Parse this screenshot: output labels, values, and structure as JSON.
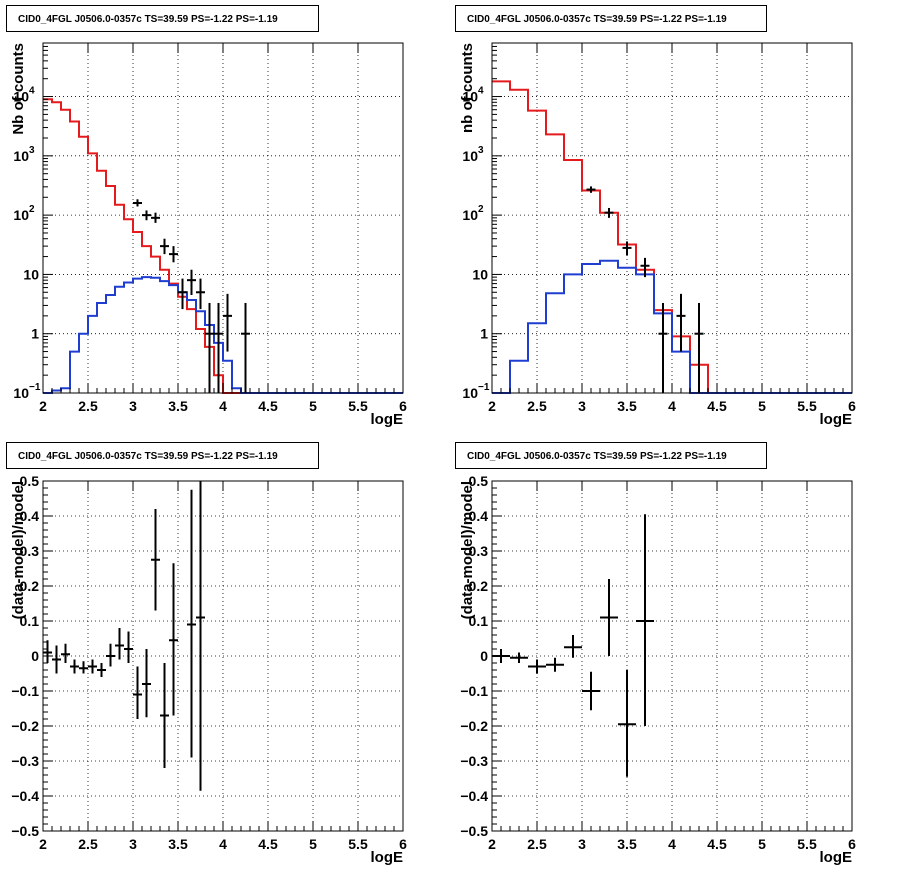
{
  "chart_data": [
    {
      "type": "step-histogram",
      "title": "CID0_4FGL J0506.0-0357c TS=39.59 PS=-1.22 PS=-1.19",
      "xlabel": "logE",
      "ylabel": "Nb of counts",
      "xlim": [
        2,
        6
      ],
      "ylim": [
        0.1,
        80000
      ],
      "yscale": "log",
      "grid": true,
      "xticks": [
        "2",
        "2.5",
        "3",
        "3.5",
        "4",
        "4.5",
        "5",
        "5.5",
        "6"
      ],
      "yticks": [
        {
          "v": 0.1,
          "label": "10",
          "sup": "−1"
        },
        {
          "v": 1,
          "label": "1",
          "sup": ""
        },
        {
          "v": 10,
          "label": "10",
          "sup": ""
        },
        {
          "v": 100,
          "label": "10",
          "sup": "2"
        },
        {
          "v": 1000,
          "label": "10",
          "sup": "3"
        },
        {
          "v": 10000,
          "label": "10",
          "sup": "4"
        }
      ],
      "bin_edges": [
        2.0,
        2.1,
        2.2,
        2.3,
        2.4,
        2.5,
        2.6,
        2.7,
        2.8,
        2.9,
        3.0,
        3.1,
        3.2,
        3.3,
        3.4,
        3.5,
        3.6,
        3.7,
        3.8,
        3.9,
        4.0,
        4.1,
        4.2,
        4.3,
        4.4,
        4.5,
        4.6,
        4.7,
        4.8,
        4.9,
        5.0,
        5.1,
        5.2,
        5.3,
        5.4,
        5.5,
        5.6,
        5.7,
        5.8,
        5.9,
        6.0
      ],
      "series": [
        {
          "kind": "hist",
          "color": "#e41a1c",
          "values": [
            9000,
            8000,
            6000,
            3800,
            2100,
            1100,
            560,
            310,
            150,
            85,
            52,
            30,
            20,
            12,
            7,
            4.2,
            2.6,
            1.2,
            0.6,
            0.2,
            0.1,
            0.1,
            0.1,
            0.1,
            0.1,
            0.1,
            0.1,
            0.1,
            0.1,
            0.1,
            0.1,
            0.1,
            0.1,
            0.1,
            0.1,
            0.1,
            0.1,
            0.1,
            0.1,
            0.1
          ]
        },
        {
          "kind": "hist",
          "color": "#1f3ed1",
          "values": [
            0.1,
            0.11,
            0.12,
            0.5,
            1.0,
            2.0,
            3.3,
            4.5,
            6.2,
            7.3,
            8.5,
            9.0,
            8.8,
            7.7,
            6.6,
            5.0,
            3.7,
            2.4,
            1.4,
            0.7,
            0.35,
            0.12,
            0.1,
            0.1,
            0.1,
            0.1,
            0.1,
            0.1,
            0.1,
            0.1,
            0.1,
            0.1,
            0.1,
            0.1,
            0.1,
            0.1,
            0.1,
            0.1,
            0.1,
            0.1
          ]
        },
        {
          "kind": "points",
          "color": "#000000",
          "x": [
            3.05,
            3.15,
            3.25,
            3.35,
            3.45,
            3.55,
            3.65,
            3.75,
            3.85,
            3.95,
            4.05,
            4.25
          ],
          "y": [
            160,
            100,
            90,
            30,
            22,
            5,
            8,
            5,
            1,
            1,
            2,
            1
          ],
          "ylo": [
            140,
            82,
            74,
            22,
            16,
            2.6,
            4.5,
            2.6,
            0.1,
            0.1,
            0.5,
            0.1
          ],
          "yhi": [
            185,
            120,
            110,
            40,
            30,
            8.5,
            12,
            8.5,
            3.3,
            3.3,
            4.7,
            3.3
          ]
        }
      ]
    },
    {
      "type": "step-histogram",
      "title": "CID0_4FGL J0506.0-0357c TS=39.59 PS=-1.22 PS=-1.19",
      "xlabel": "logE",
      "ylabel": "nb of counts",
      "xlim": [
        2,
        6
      ],
      "ylim": [
        0.1,
        80000
      ],
      "yscale": "log",
      "grid": true,
      "xticks": [
        "2",
        "2.5",
        "3",
        "3.5",
        "4",
        "4.5",
        "5",
        "5.5",
        "6"
      ],
      "yticks": [
        {
          "v": 0.1,
          "label": "10",
          "sup": "−1"
        },
        {
          "v": 1,
          "label": "1",
          "sup": ""
        },
        {
          "v": 10,
          "label": "10",
          "sup": ""
        },
        {
          "v": 100,
          "label": "10",
          "sup": "2"
        },
        {
          "v": 1000,
          "label": "10",
          "sup": "3"
        },
        {
          "v": 10000,
          "label": "10",
          "sup": "4"
        }
      ],
      "bin_edges": [
        2.0,
        2.2,
        2.4,
        2.6,
        2.8,
        3.0,
        3.2,
        3.4,
        3.6,
        3.8,
        4.0,
        4.2,
        4.4,
        4.6,
        4.8,
        5.0,
        5.2,
        5.4,
        5.6,
        5.8,
        6.0
      ],
      "series": [
        {
          "kind": "hist",
          "color": "#e41a1c",
          "values": [
            18000,
            13000,
            5800,
            2300,
            850,
            260,
            110,
            32,
            12,
            2.5,
            0.9,
            0.3,
            0.1,
            0.1,
            0.1,
            0.1,
            0.1,
            0.1,
            0.1,
            0.1
          ]
        },
        {
          "kind": "hist",
          "color": "#1f3ed1",
          "values": [
            0.1,
            0.35,
            1.5,
            4.8,
            10,
            15,
            17,
            13,
            10,
            2.2,
            0.5,
            0.1,
            0.1,
            0.1,
            0.1,
            0.1,
            0.1,
            0.1,
            0.1,
            0.1
          ]
        },
        {
          "kind": "points",
          "color": "#000000",
          "x": [
            3.1,
            3.3,
            3.5,
            3.7,
            3.9,
            4.1,
            4.3
          ],
          "y": [
            270,
            110,
            28,
            14,
            1,
            2,
            1
          ],
          "ylo": [
            238,
            90,
            21,
            9,
            0.1,
            0.5,
            0.1
          ],
          "yhi": [
            305,
            132,
            36,
            19,
            3.3,
            4.7,
            3.3
          ]
        }
      ]
    },
    {
      "type": "scatter",
      "title": "CID0_4FGL J0506.0-0357c TS=39.59 PS=-1.22 PS=-1.19",
      "xlabel": "logE",
      "ylabel": "(data-model)/model",
      "xlim": [
        2,
        6
      ],
      "ylim": [
        -0.5,
        0.5
      ],
      "yscale": "linear",
      "grid": true,
      "xticks": [
        "2",
        "2.5",
        "3",
        "3.5",
        "4",
        "4.5",
        "5",
        "5.5",
        "6"
      ],
      "yticks": [
        {
          "v": -0.5,
          "label": "−0.5"
        },
        {
          "v": -0.4,
          "label": "−0.4"
        },
        {
          "v": -0.3,
          "label": "−0.3"
        },
        {
          "v": -0.2,
          "label": "−0.2"
        },
        {
          "v": -0.1,
          "label": "−0.1"
        },
        {
          "v": 0,
          "label": "0"
        },
        {
          "v": 0.1,
          "label": "0.1"
        },
        {
          "v": 0.2,
          "label": "0.2"
        },
        {
          "v": 0.3,
          "label": "0.3"
        },
        {
          "v": 0.4,
          "label": "0.4"
        },
        {
          "v": 0.5,
          "label": "0.5"
        }
      ],
      "series": [
        {
          "kind": "points",
          "color": "#000000",
          "xerr": 0.05,
          "x": [
            2.05,
            2.15,
            2.25,
            2.35,
            2.45,
            2.55,
            2.65,
            2.75,
            2.85,
            2.95,
            3.05,
            3.15,
            3.25,
            3.35,
            3.45,
            3.65,
            3.75
          ],
          "y": [
            0.01,
            -0.01,
            0.005,
            -0.03,
            -0.035,
            -0.03,
            -0.04,
            0.0,
            0.03,
            0.02,
            -0.11,
            -0.08,
            0.275,
            -0.17,
            0.045,
            0.09,
            0.11
          ],
          "ylo": [
            -0.02,
            -0.05,
            -0.02,
            -0.05,
            -0.05,
            -0.05,
            -0.06,
            -0.03,
            -0.01,
            -0.02,
            -0.18,
            -0.175,
            0.13,
            -0.32,
            -0.17,
            -0.29,
            -0.385
          ],
          "yhi": [
            0.045,
            0.03,
            0.035,
            -0.01,
            -0.015,
            -0.01,
            -0.02,
            0.035,
            0.08,
            0.07,
            -0.03,
            0.02,
            0.42,
            -0.02,
            0.265,
            0.475,
            0.5
          ]
        }
      ]
    },
    {
      "type": "scatter",
      "title": "CID0_4FGL J0506.0-0357c TS=39.59 PS=-1.22 PS=-1.19",
      "xlabel": "logE",
      "ylabel": "(data-model)/model",
      "xlim": [
        2,
        6
      ],
      "ylim": [
        -0.5,
        0.5
      ],
      "yscale": "linear",
      "grid": true,
      "xticks": [
        "2",
        "2.5",
        "3",
        "3.5",
        "4",
        "4.5",
        "5",
        "5.5",
        "6"
      ],
      "yticks": [
        {
          "v": -0.5,
          "label": "−0.5"
        },
        {
          "v": -0.4,
          "label": "−0.4"
        },
        {
          "v": -0.3,
          "label": "−0.3"
        },
        {
          "v": -0.2,
          "label": "−0.2"
        },
        {
          "v": -0.1,
          "label": "−0.1"
        },
        {
          "v": 0,
          "label": "0"
        },
        {
          "v": 0.1,
          "label": "0.1"
        },
        {
          "v": 0.2,
          "label": "0.2"
        },
        {
          "v": 0.3,
          "label": "0.3"
        },
        {
          "v": 0.4,
          "label": "0.4"
        },
        {
          "v": 0.5,
          "label": "0.5"
        }
      ],
      "series": [
        {
          "kind": "points",
          "color": "#000000",
          "xerr": 0.1,
          "x": [
            2.1,
            2.3,
            2.5,
            2.7,
            2.9,
            3.1,
            3.3,
            3.5,
            3.7
          ],
          "y": [
            0.0,
            -0.005,
            -0.03,
            -0.025,
            0.025,
            -0.1,
            0.11,
            -0.195,
            0.1
          ],
          "ylo": [
            -0.02,
            -0.02,
            -0.05,
            -0.045,
            -0.005,
            -0.155,
            0.0,
            -0.345,
            -0.2
          ],
          "yhi": [
            0.02,
            0.01,
            -0.01,
            -0.005,
            0.06,
            -0.045,
            0.22,
            -0.04,
            0.405
          ]
        }
      ]
    }
  ]
}
